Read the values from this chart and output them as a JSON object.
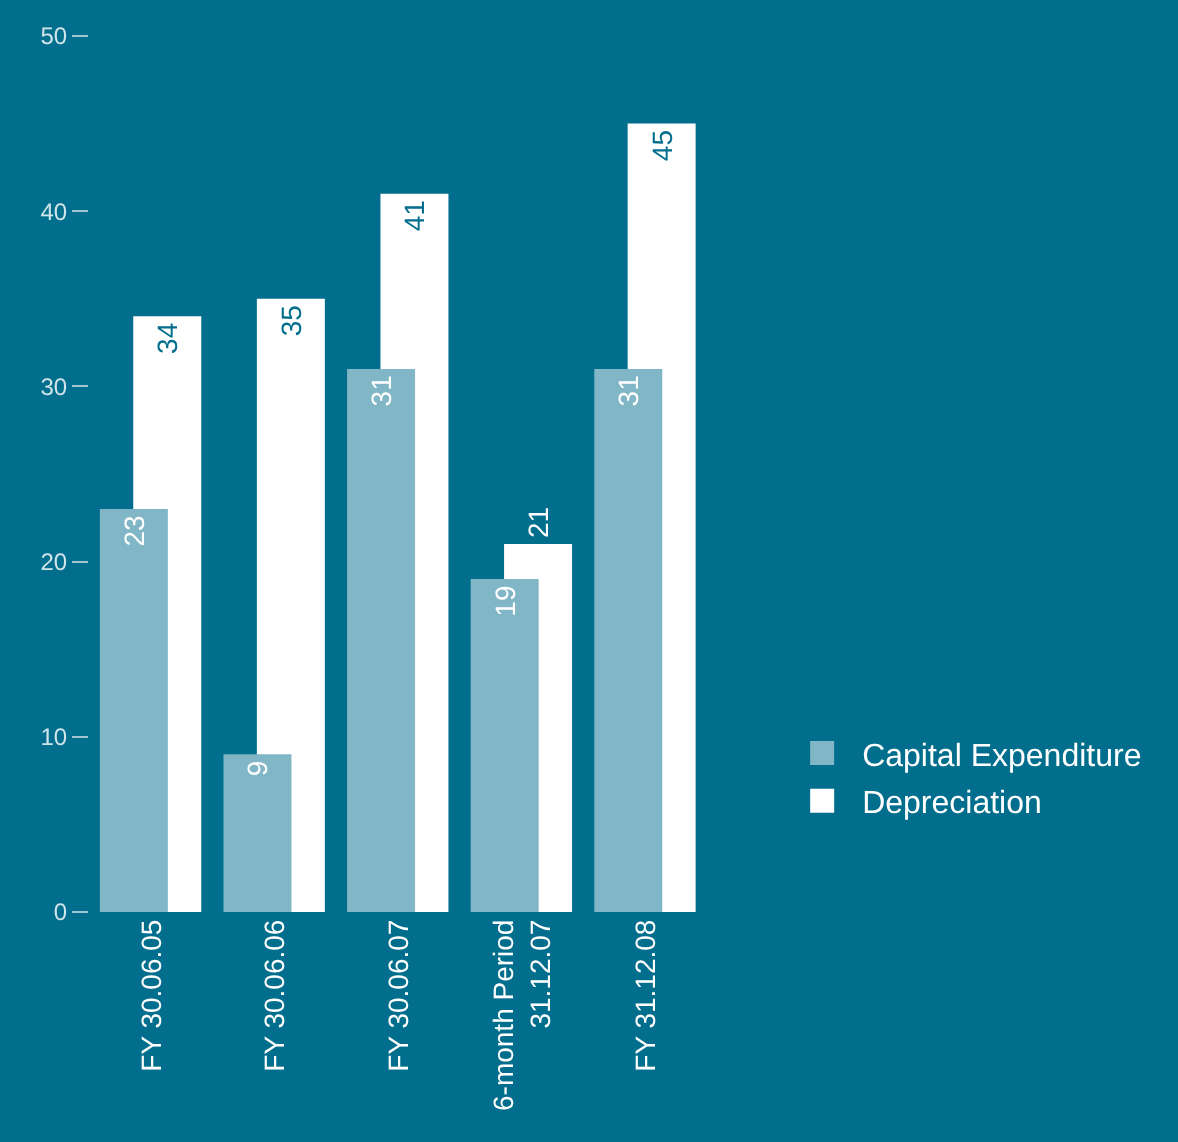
{
  "chart_data": {
    "type": "bar",
    "categories": [
      "FY 30.06.05",
      "FY 30.06.06",
      "FY 30.06.07",
      "6-month Period\n31.12.07",
      "FY 31.12.08"
    ],
    "series": [
      {
        "name": "Capital Expenditure",
        "color": "#80b6c6",
        "values": [
          23,
          9,
          31,
          19,
          31
        ]
      },
      {
        "name": "Depreciation",
        "color": "#ffffff",
        "values": [
          34,
          35,
          41,
          21,
          45
        ]
      }
    ],
    "ylim": [
      0,
      50
    ],
    "yticks": [
      0,
      10,
      20,
      30,
      40,
      50
    ],
    "data_labels": true,
    "legend": "right",
    "grid": false
  }
}
